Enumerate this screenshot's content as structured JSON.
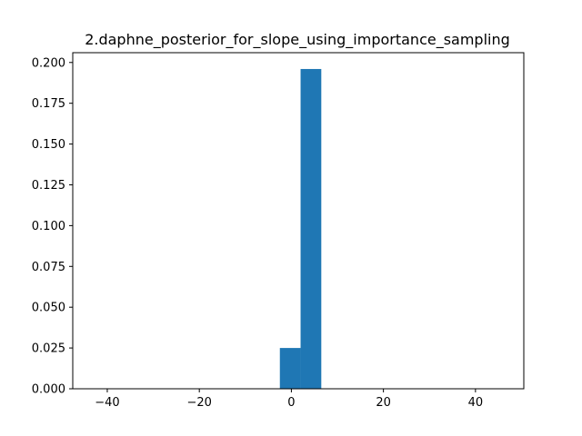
{
  "chart_data": {
    "type": "bar",
    "title": "2.daphne_posterior_for_slope_using_importance_sampling",
    "xlabel": "",
    "ylabel": "",
    "xlim": [
      -47.5,
      50.5
    ],
    "ylim": [
      0,
      0.206
    ],
    "grid": false,
    "bins": [
      {
        "x0": -2.5,
        "x1": 2.0,
        "value": 0.025
      },
      {
        "x0": 2.0,
        "x1": 6.5,
        "value": 0.196
      }
    ],
    "xticks": [
      -40,
      -20,
      0,
      20,
      40
    ],
    "xtick_labels": [
      "−40",
      "−20",
      "0",
      "20",
      "40"
    ],
    "yticks": [
      0.0,
      0.025,
      0.05,
      0.075,
      0.1,
      0.125,
      0.15,
      0.175,
      0.2
    ],
    "ytick_labels": [
      "0.000",
      "0.025",
      "0.050",
      "0.075",
      "0.100",
      "0.125",
      "0.150",
      "0.175",
      "0.200"
    ],
    "bar_color": "#1f77b4"
  }
}
